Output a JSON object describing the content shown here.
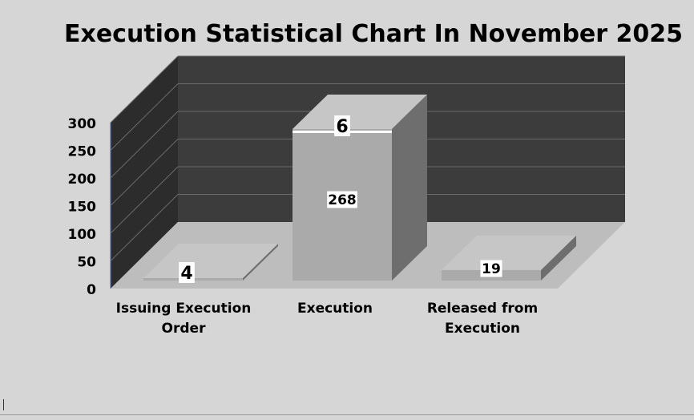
{
  "chart_data": {
    "type": "bar",
    "title": "Execution Statistical Chart In November 2025",
    "categories": [
      [
        "Issuing Execution",
        "Order"
      ],
      [
        "Execution"
      ],
      [
        "Released from",
        "Execution"
      ]
    ],
    "series": [
      {
        "values": [
          0,
          268,
          19
        ]
      },
      {
        "values": [
          4,
          6,
          0
        ]
      }
    ],
    "data_labels": [
      "4",
      "268",
      "6",
      "19"
    ],
    "yticks": [
      "0",
      "50",
      "100",
      "150",
      "200",
      "250",
      "300"
    ],
    "ylim": [
      0,
      300
    ],
    "stacked": true,
    "style": "3d-column",
    "grid": true,
    "colors": {
      "background": "#d6d6d6",
      "back_wall": "#3c3c3c",
      "side_wall": "#2c2c2c",
      "floor": "#bdbdbd",
      "bar_front": "#aaaaaa",
      "bar_top": "#c6c6c6",
      "bar_side": "#6e6e6e"
    }
  }
}
